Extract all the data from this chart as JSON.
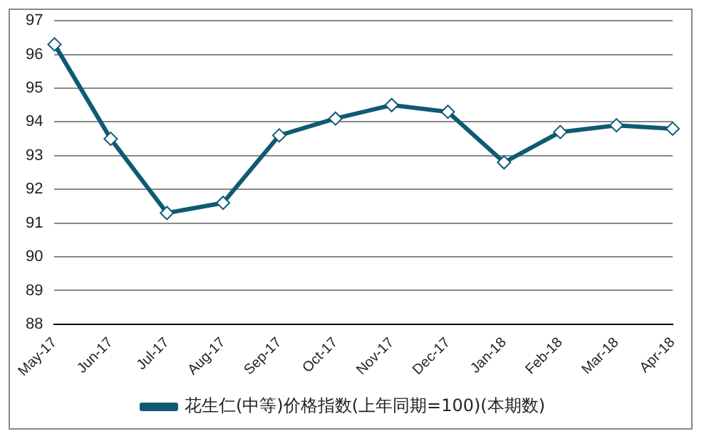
{
  "chart_data": {
    "type": "line",
    "categories": [
      "May-17",
      "Jun-17",
      "Jul-17",
      "Aug-17",
      "Sep-17",
      "Oct-17",
      "Nov-17",
      "Dec-17",
      "Jan-18",
      "Feb-18",
      "Mar-18",
      "Apr-18"
    ],
    "series": [
      {
        "name": "花生仁(中等)价格指数(上年同期=100)(本期数)",
        "color": "#0e5a74",
        "values": [
          96.3,
          93.5,
          91.3,
          91.6,
          93.6,
          94.1,
          94.5,
          94.3,
          92.8,
          93.7,
          93.9,
          93.8
        ]
      }
    ],
    "ylim": [
      88,
      97
    ],
    "yticks": [
      88,
      89,
      90,
      91,
      92,
      93,
      94,
      95,
      96,
      97
    ],
    "grid": "y",
    "legend": "bottom",
    "marker": "diamond",
    "line_style": "solid"
  }
}
